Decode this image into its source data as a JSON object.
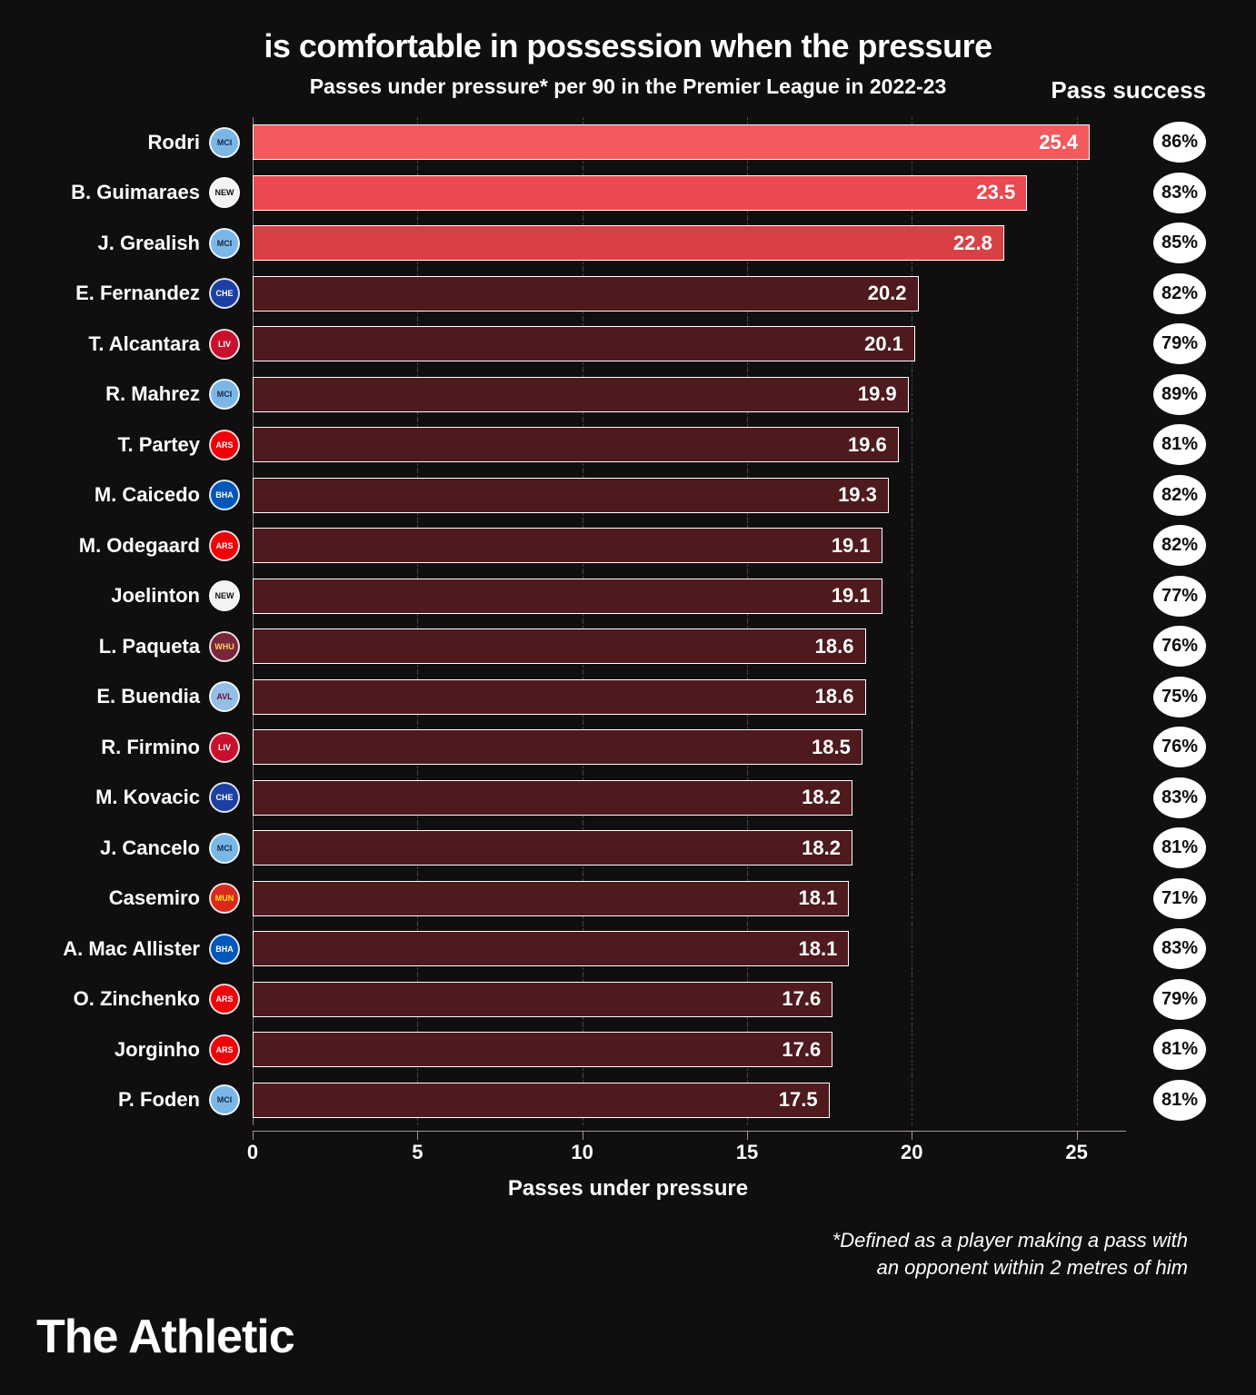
{
  "chart": {
    "type": "bar-horizontal",
    "title": "is comfortable in possession when the pressure",
    "subtitle": "Passes under pressure* per 90 in the Premier League in 2022-23",
    "x_label": "Passes under pressure",
    "pass_success_header": "Pass success",
    "x_max": 26.5,
    "x_ticks": [
      0,
      5,
      10,
      15,
      20,
      25
    ],
    "footnote_l1": "*Defined as a player making a pass with",
    "footnote_l2": "an opponent within 2 metres of him",
    "brand": "The Athletic",
    "background_color": "#100e0f",
    "grid_color": "#4a4648",
    "axis_color": "#a09a9c",
    "text_color": "#ffffff",
    "bar_border": "#ffffff",
    "pct_badge_bg": "#ffffff",
    "pct_badge_fg": "#100e0f",
    "highlight_colors": [
      "#f25a5e",
      "#e9494f",
      "#d84046"
    ],
    "normal_bar_color": "#4e1a1d",
    "players": [
      {
        "name": "Rodri",
        "value": 25.4,
        "pct": "86%",
        "highlight": 0,
        "club": "MCI",
        "club_bg": "#7ab7e6",
        "club_fg": "#1a2a44"
      },
      {
        "name": "B. Guimaraes",
        "value": 23.5,
        "pct": "83%",
        "highlight": 1,
        "club": "NEW",
        "club_bg": "#f3f3f3",
        "club_fg": "#111111"
      },
      {
        "name": "J. Grealish",
        "value": 22.8,
        "pct": "85%",
        "highlight": 2,
        "club": "MCI",
        "club_bg": "#7ab7e6",
        "club_fg": "#1a2a44"
      },
      {
        "name": "E. Fernandez",
        "value": 20.2,
        "pct": "82%",
        "highlight": -1,
        "club": "CHE",
        "club_bg": "#1d3fa0",
        "club_fg": "#ffffff"
      },
      {
        "name": "T. Alcantara",
        "value": 20.1,
        "pct": "79%",
        "highlight": -1,
        "club": "LIV",
        "club_bg": "#c8102e",
        "club_fg": "#ffffff"
      },
      {
        "name": "R. Mahrez",
        "value": 19.9,
        "pct": "89%",
        "highlight": -1,
        "club": "MCI",
        "club_bg": "#7ab7e6",
        "club_fg": "#1a2a44"
      },
      {
        "name": "T. Partey",
        "value": 19.6,
        "pct": "81%",
        "highlight": -1,
        "club": "ARS",
        "club_bg": "#ef0107",
        "club_fg": "#ffffff"
      },
      {
        "name": "M. Caicedo",
        "value": 19.3,
        "pct": "82%",
        "highlight": -1,
        "club": "BHA",
        "club_bg": "#0057b8",
        "club_fg": "#ffffff"
      },
      {
        "name": "M. Odegaard",
        "value": 19.1,
        "pct": "82%",
        "highlight": -1,
        "club": "ARS",
        "club_bg": "#ef0107",
        "club_fg": "#ffffff"
      },
      {
        "name": "Joelinton",
        "value": 19.1,
        "pct": "77%",
        "highlight": -1,
        "club": "NEW",
        "club_bg": "#f3f3f3",
        "club_fg": "#111111"
      },
      {
        "name": "L. Paqueta",
        "value": 18.6,
        "pct": "76%",
        "highlight": -1,
        "club": "WHU",
        "club_bg": "#7a263a",
        "club_fg": "#f3d459"
      },
      {
        "name": "E. Buendia",
        "value": 18.6,
        "pct": "75%",
        "highlight": -1,
        "club": "AVL",
        "club_bg": "#95bfe5",
        "club_fg": "#670e36"
      },
      {
        "name": "R. Firmino",
        "value": 18.5,
        "pct": "76%",
        "highlight": -1,
        "club": "LIV",
        "club_bg": "#c8102e",
        "club_fg": "#ffffff"
      },
      {
        "name": "M. Kovacic",
        "value": 18.2,
        "pct": "83%",
        "highlight": -1,
        "club": "CHE",
        "club_bg": "#1d3fa0",
        "club_fg": "#ffffff"
      },
      {
        "name": "J. Cancelo",
        "value": 18.2,
        "pct": "81%",
        "highlight": -1,
        "club": "MCI",
        "club_bg": "#7ab7e6",
        "club_fg": "#1a2a44"
      },
      {
        "name": "Casemiro",
        "value": 18.1,
        "pct": "71%",
        "highlight": -1,
        "club": "MUN",
        "club_bg": "#da291c",
        "club_fg": "#fbe122"
      },
      {
        "name": "A. Mac Allister",
        "value": 18.1,
        "pct": "83%",
        "highlight": -1,
        "club": "BHA",
        "club_bg": "#0057b8",
        "club_fg": "#ffffff"
      },
      {
        "name": "O. Zinchenko",
        "value": 17.6,
        "pct": "79%",
        "highlight": -1,
        "club": "ARS",
        "club_bg": "#ef0107",
        "club_fg": "#ffffff"
      },
      {
        "name": "Jorginho",
        "value": 17.6,
        "pct": "81%",
        "highlight": -1,
        "club": "ARS",
        "club_bg": "#ef0107",
        "club_fg": "#ffffff"
      },
      {
        "name": "P. Foden",
        "value": 17.5,
        "pct": "81%",
        "highlight": -1,
        "club": "MCI",
        "club_bg": "#7ab7e6",
        "club_fg": "#1a2a44"
      }
    ]
  }
}
